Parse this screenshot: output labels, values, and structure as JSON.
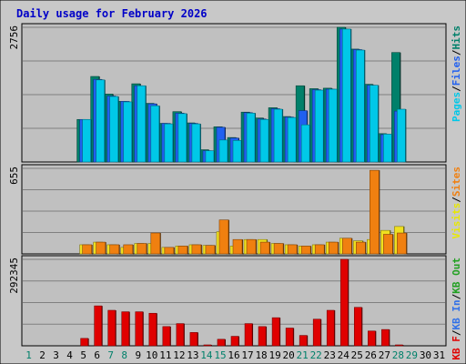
{
  "chart_data": {
    "type": "bar",
    "title": "Daily usage for February 2026",
    "days": [
      "1",
      "2",
      "3",
      "4",
      "5",
      "6",
      "7",
      "8",
      "9",
      "10",
      "11",
      "12",
      "13",
      "14",
      "15",
      "16",
      "17",
      "18",
      "19",
      "20",
      "21",
      "22",
      "23",
      "24",
      "25",
      "26",
      "27",
      "28",
      "29",
      "30",
      "31"
    ],
    "weekend_days": [
      1,
      7,
      8,
      14,
      15,
      21,
      22,
      28,
      29
    ],
    "panels": {
      "top": {
        "max_label": "2756",
        "ylim": [
          0,
          2756
        ],
        "legend": [
          {
            "text": "Pages",
            "color": "#00c8e8"
          },
          {
            "text": "/",
            "color": "#000000"
          },
          {
            "text": "Files",
            "color": "#2060f0"
          },
          {
            "text": "/",
            "color": "#000000"
          },
          {
            "text": "Hits",
            "color": "#00806a"
          }
        ],
        "series": [
          {
            "name": "Hits",
            "color": "#00806a",
            "values": [
              null,
              null,
              null,
              null,
              870,
              1750,
              1390,
              1240,
              1600,
              1200,
              790,
              1030,
              800,
              250,
              720,
              500,
              1020,
              900,
              1110,
              930,
              1560,
              1500,
              1510,
              2756,
              2310,
              1590,
              580,
              2240,
              null,
              null,
              null
            ]
          },
          {
            "name": "Files",
            "color": "#2060f0",
            "values": [
              null,
              null,
              null,
              null,
              870,
              1690,
              1350,
              1240,
              1560,
              1190,
              790,
              1000,
              790,
              230,
              710,
              490,
              1010,
              880,
              1090,
              920,
              1050,
              1480,
              1490,
              2720,
              2300,
              1570,
              560,
              1040,
              null,
              null,
              null
            ]
          },
          {
            "name": "Pages",
            "color": "#00c8e8",
            "values": [
              null,
              null,
              null,
              null,
              870,
              1680,
              1340,
              1230,
              1560,
              1150,
              780,
              990,
              780,
              230,
              450,
              440,
              1000,
              870,
              1080,
              910,
              760,
              1470,
              1490,
              2720,
              2290,
              1570,
              570,
              1080,
              null,
              null,
              null
            ]
          }
        ]
      },
      "middle": {
        "max_label": "655",
        "ylim": [
          0,
          655
        ],
        "legend": [
          {
            "text": "Visits",
            "color": "#e8e800"
          },
          {
            "text": "/",
            "color": "#000000"
          },
          {
            "text": "Sites",
            "color": "#f08010"
          }
        ],
        "series": [
          {
            "name": "Visits",
            "color": "#f0e020",
            "values": [
              null,
              null,
              null,
              null,
              70,
              90,
              70,
              50,
              80,
              80,
              50,
              60,
              70,
              65,
              170,
              60,
              110,
              110,
              80,
              70,
              60,
              70,
              90,
              120,
              100,
              110,
              180,
              210,
              null,
              null,
              null
            ]
          },
          {
            "name": "Sites",
            "color": "#f08010",
            "values": [
              null,
              null,
              null,
              null,
              70,
              90,
              70,
              70,
              80,
              160,
              50,
              60,
              70,
              65,
              260,
              110,
              110,
              90,
              80,
              70,
              60,
              70,
              90,
              120,
              90,
              640,
              150,
              160,
              null,
              null,
              null
            ]
          }
        ]
      },
      "bottom": {
        "max_label": "292345",
        "ylim": [
          0,
          292345
        ],
        "legend": [
          {
            "text": "KB F",
            "color": "#e00000"
          },
          {
            "text": "/",
            "color": "#000000"
          },
          {
            "text": "KB In",
            "color": "#3070e8"
          },
          {
            "text": "/",
            "color": "#000000"
          },
          {
            "text": "KB Out",
            "color": "#20a020"
          }
        ],
        "series": [
          {
            "name": "KB F",
            "color": "#e00000",
            "values": [
              null,
              null,
              null,
              null,
              25000,
              135000,
              120000,
              115000,
              115000,
              110000,
              65000,
              75000,
              45000,
              2000,
              22000,
              32000,
              75000,
              65000,
              95000,
              60000,
              35000,
              90000,
              120000,
              292345,
              130000,
              50000,
              55000,
              0,
              null,
              null,
              null
            ]
          }
        ]
      }
    },
    "grid": true
  }
}
